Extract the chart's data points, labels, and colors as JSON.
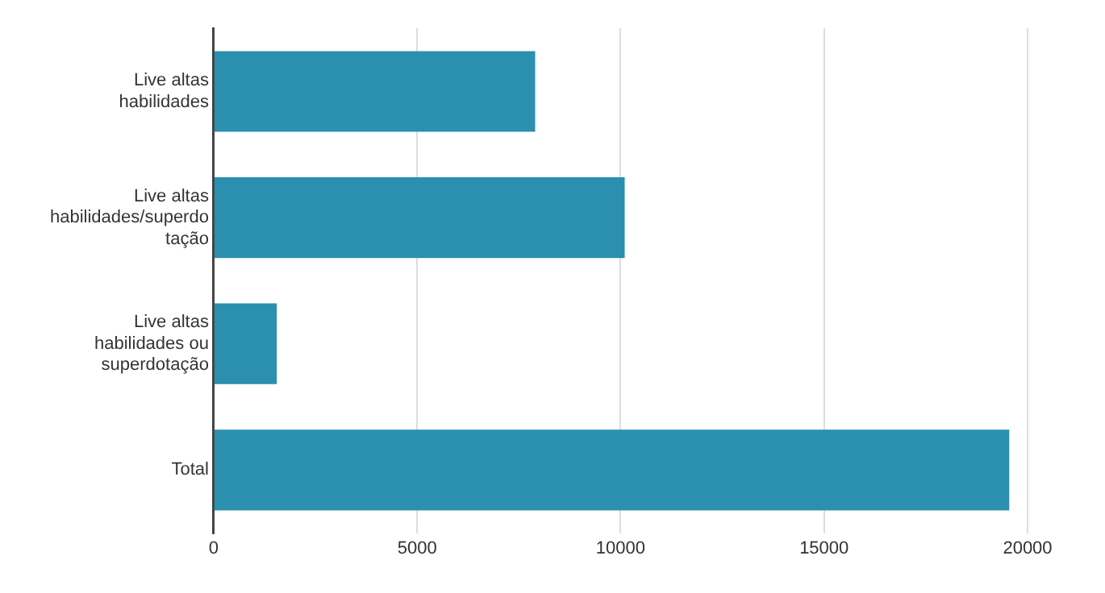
{
  "chart_data": {
    "type": "bar",
    "orientation": "horizontal",
    "categories": [
      "Live altas habilidades",
      "Live altas habilidades/superdotação",
      "Live altas habilidades ou superdotação",
      "Total"
    ],
    "values": [
      7900,
      10100,
      1550,
      19550
    ],
    "color": "#2b8fb0",
    "xlim": [
      0,
      20000
    ],
    "xticks": [
      0,
      5000,
      10000,
      15000,
      20000
    ],
    "grid": "x",
    "legend": false
  }
}
